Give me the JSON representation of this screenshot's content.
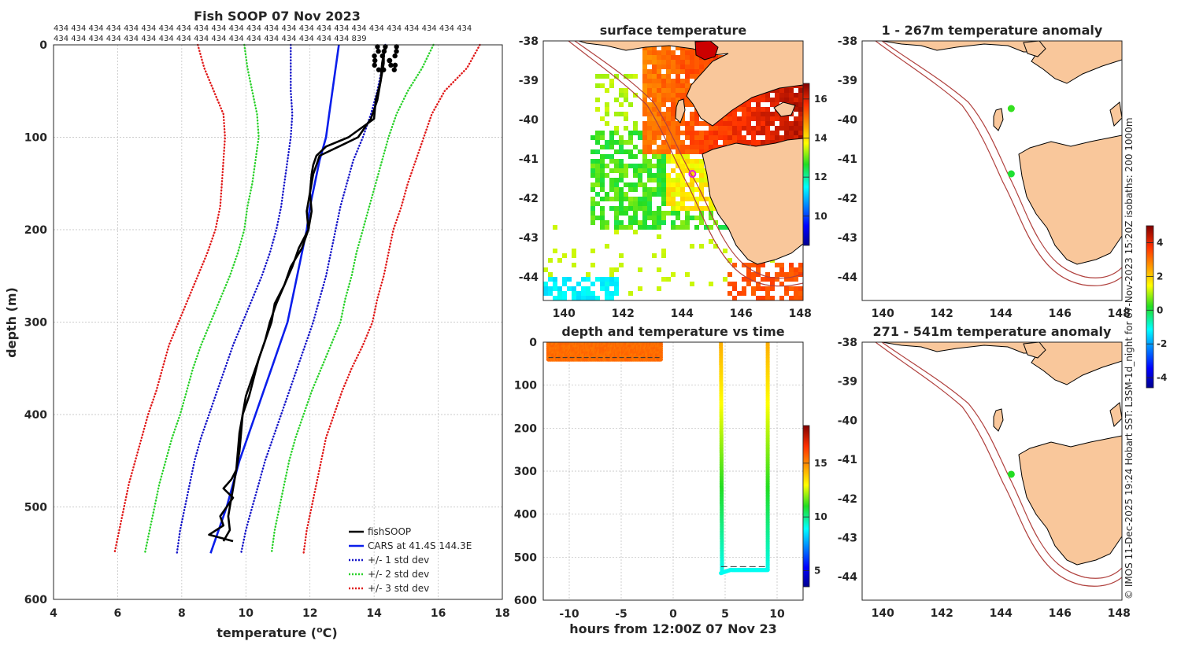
{
  "chart_data": [
    {
      "type": "line",
      "title": "Fish SOOP 07 Nov 2023",
      "xlabel": "temperature (",
      "xlabel_sup": "o",
      "xlabel_end": "C)",
      "ylabel": "depth (m)",
      "xlim": [
        4,
        18
      ],
      "ylim": [
        0,
        600
      ],
      "xticks": [
        "4",
        "6",
        "8",
        "10",
        "12",
        "14",
        "16",
        "18"
      ],
      "yticks": [
        "0",
        "100",
        "200",
        "300",
        "400",
        "500",
        "600"
      ],
      "header_row1": "434 434 434 434 434 434 434 434 434 434 434 434 434 434 434 434 434 434 434 434 434 434 434 434",
      "header_row2": "434 434 434 434 434 434 434 434 434 434 434 434 434 434 434 434 434 839",
      "legend": [
        "fishSOOP",
        "CARS at 41.4S 144.3E",
        "+/- 1 std dev",
        "+/- 2 std dev",
        "+/- 3 std dev"
      ],
      "colors": {
        "fish": "#000000",
        "cars": "#0a1eeb",
        "std1": "#1414c8",
        "std2": "#2ad12a",
        "std3": "#e01a1a"
      },
      "depth": [
        0,
        25,
        50,
        75,
        100,
        125,
        150,
        175,
        200,
        225,
        250,
        275,
        300,
        325,
        350,
        375,
        400,
        425,
        450,
        475,
        500,
        525,
        550
      ],
      "cars": [
        12.9,
        12.8,
        12.7,
        12.6,
        12.5,
        12.3,
        12.15,
        12.0,
        11.9,
        11.75,
        11.6,
        11.45,
        11.3,
        11.05,
        10.8,
        10.55,
        10.3,
        10.05,
        9.8,
        9.6,
        9.4,
        9.15,
        8.9
      ],
      "series_std": [
        {
          "name": "-3 std",
          "values": [
            8.5,
            8.7,
            9.0,
            9.3,
            9.35,
            9.3,
            9.25,
            9.2,
            9.05,
            8.8,
            8.5,
            8.2,
            7.9,
            7.6,
            7.4,
            7.2,
            6.95,
            6.75,
            6.55,
            6.35,
            6.2,
            6.05,
            5.9
          ]
        },
        {
          "name": "-2 std",
          "values": [
            9.95,
            10.05,
            10.2,
            10.35,
            10.4,
            10.3,
            10.2,
            10.05,
            9.95,
            9.75,
            9.5,
            9.2,
            8.9,
            8.6,
            8.35,
            8.15,
            7.95,
            7.7,
            7.5,
            7.3,
            7.15,
            7.0,
            6.85
          ]
        },
        {
          "name": "-1 std",
          "values": [
            11.4,
            11.4,
            11.4,
            11.45,
            11.4,
            11.3,
            11.2,
            11.1,
            10.95,
            10.75,
            10.5,
            10.2,
            9.9,
            9.6,
            9.35,
            9.1,
            8.85,
            8.6,
            8.4,
            8.25,
            8.1,
            7.95,
            7.85
          ]
        },
        {
          "name": "+1 std",
          "values": [
            14.35,
            14.25,
            14.1,
            13.9,
            13.65,
            13.35,
            13.15,
            12.95,
            12.8,
            12.65,
            12.5,
            12.3,
            12.1,
            11.85,
            11.6,
            11.35,
            11.1,
            10.85,
            10.6,
            10.4,
            10.2,
            10.0,
            9.85
          ]
        },
        {
          "name": "+2 std",
          "values": [
            15.85,
            15.5,
            15.05,
            14.7,
            14.45,
            14.25,
            14.05,
            13.85,
            13.65,
            13.45,
            13.3,
            13.1,
            12.95,
            12.65,
            12.35,
            12.05,
            11.8,
            11.55,
            11.35,
            11.2,
            11.05,
            10.9,
            10.8
          ]
        },
        {
          "name": "+3 std",
          "values": [
            17.3,
            16.9,
            16.2,
            15.8,
            15.55,
            15.3,
            15.05,
            14.85,
            14.6,
            14.45,
            14.3,
            14.1,
            13.95,
            13.65,
            13.3,
            13.0,
            12.75,
            12.5,
            12.35,
            12.2,
            12.05,
            11.9,
            11.8
          ]
        }
      ],
      "fish_down": {
        "depth": [
          0,
          10,
          20,
          40,
          60,
          80,
          100,
          110,
          120,
          130,
          140,
          160,
          180,
          200,
          220,
          240,
          260,
          280,
          300,
          320,
          340,
          360,
          380,
          400,
          420,
          440,
          460,
          470,
          480,
          490,
          500,
          510,
          520,
          530,
          537
        ],
        "temp": [
          14.4,
          14.3,
          14.3,
          14.2,
          14.05,
          14.0,
          13.2,
          12.5,
          12.2,
          12.1,
          12.05,
          12.0,
          11.9,
          11.95,
          11.75,
          11.4,
          11.2,
          10.9,
          10.8,
          10.6,
          10.4,
          10.2,
          10.0,
          9.9,
          9.8,
          9.75,
          9.7,
          9.55,
          9.3,
          9.6,
          9.4,
          9.2,
          9.3,
          8.85,
          9.6
        ]
      },
      "fish_up": {
        "depth": [
          537,
          525,
          510,
          500,
          480,
          460,
          440,
          420,
          400,
          380,
          360,
          340,
          320,
          300,
          280,
          260,
          240,
          220,
          200,
          180,
          160,
          140,
          130,
          120,
          110,
          100,
          80,
          60,
          40,
          20,
          10,
          0
        ],
        "temp": [
          9.3,
          9.5,
          9.45,
          9.5,
          9.6,
          9.7,
          9.8,
          9.85,
          9.9,
          10.1,
          10.25,
          10.4,
          10.6,
          10.75,
          10.95,
          11.2,
          11.45,
          11.65,
          11.95,
          12.05,
          12.0,
          12.1,
          12.2,
          12.3,
          12.9,
          13.5,
          13.9,
          14.1,
          14.2,
          14.25,
          14.3,
          14.35
        ]
      }
    },
    {
      "type": "heatmap",
      "title": "surface temperature",
      "xticks": [
        "140",
        "142",
        "144",
        "146",
        "148"
      ],
      "yticks": [
        "-38",
        "-39",
        "-40",
        "-41",
        "-42",
        "-43",
        "-44"
      ],
      "xlim": [
        139.3,
        148.1
      ],
      "ylim": [
        -44.6,
        -38.0
      ],
      "colorbar_ticks": [
        "10",
        "12",
        "14",
        "16"
      ],
      "colorbar_range": [
        8.5,
        16.8
      ],
      "marker": {
        "lon": 144.35,
        "lat": -41.38,
        "color": "#e020e0"
      }
    },
    {
      "type": "scatter",
      "title": "depth and temperature vs time",
      "xlabel": "hours from 12:00Z 07 Nov 23",
      "xticks": [
        "-10",
        "-5",
        "0",
        "5",
        "10"
      ],
      "yticks": [
        "0",
        "100",
        "200",
        "300",
        "400",
        "500",
        "600"
      ],
      "xlim": [
        -12.5,
        12.5
      ],
      "ylim": [
        0,
        600
      ],
      "colorbar_ticks": [
        "5",
        "10",
        "15"
      ],
      "colorbar_range": [
        3.5,
        18.5
      ],
      "surface_block": {
        "hours": [
          -12.0,
          -1.2
        ],
        "depth": [
          0,
          40
        ]
      },
      "profiles": [
        {
          "hour_start": 4.6,
          "hour_bottom": 5.0,
          "hour_end": 9.1,
          "max_depth": 537
        }
      ]
    },
    {
      "type": "scatter",
      "title": "1 - 267m temperature anomaly",
      "xticks": [
        "140",
        "142",
        "144",
        "146",
        "148"
      ],
      "yticks": [
        "-38",
        "-39",
        "-40",
        "-41",
        "-42",
        "-43",
        "-44"
      ],
      "xlim": [
        139.3,
        148.1
      ],
      "ylim": [
        -44.6,
        -38.0
      ],
      "points": [
        {
          "lon": 144.35,
          "lat": -39.72,
          "anomaly": 0.3
        },
        {
          "lon": 144.35,
          "lat": -41.38,
          "anomaly": 0.1
        }
      ]
    },
    {
      "type": "scatter",
      "title": "271 - 541m temperature anomaly",
      "xticks": [
        "140",
        "142",
        "144",
        "146",
        "148"
      ],
      "yticks": [
        "-38",
        "-39",
        "-40",
        "-41",
        "-42",
        "-43",
        "-44"
      ],
      "xlim": [
        139.3,
        148.1
      ],
      "ylim": [
        -44.6,
        -38.0
      ],
      "points": [
        {
          "lon": 144.35,
          "lat": -41.38,
          "anomaly": 0.2
        }
      ],
      "colorbar_ticks": [
        "-4",
        "-2",
        "0",
        "2",
        "4"
      ],
      "colorbar_range": [
        -4.6,
        5.0
      ]
    }
  ],
  "credit": "© IMOS 11-Dec-2025 19:24 Hobart SST: L3SM-1d_night for 07-Nov-2023 15:20Z isobaths: 200  1000m",
  "colors": {
    "land": "#f9c79b",
    "isobath": "#b0413e"
  }
}
